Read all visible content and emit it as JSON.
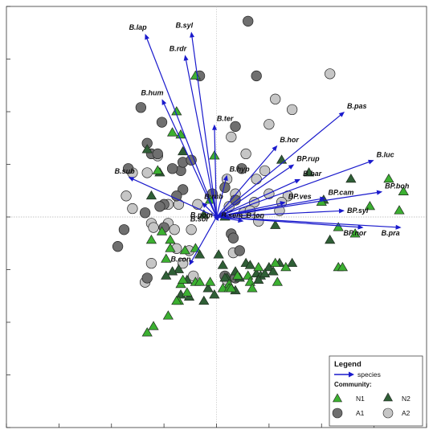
{
  "chart_data": {
    "type": "scatter",
    "subtype": "ordination biplot",
    "xlim": [
      -1.0,
      1.0
    ],
    "ylim": [
      -1.0,
      1.0
    ],
    "grid": false,
    "origin_lines": true,
    "legend_position": "bottom-right",
    "colors": {
      "N1": "#3cb031",
      "N2": "#2f5f36",
      "A1": "#6f6f6f",
      "A2": "#c6c6c6",
      "arrow": "#1a1acc"
    },
    "legend": {
      "title": "Legend",
      "arrow_label": "species",
      "community_title": "Community:",
      "items": [
        {
          "key": "N1",
          "label": "N1",
          "marker": "triangle"
        },
        {
          "key": "N2",
          "label": "N2",
          "marker": "triangle"
        },
        {
          "key": "A1",
          "label": "A1",
          "marker": "circle"
        },
        {
          "key": "A2",
          "label": "A2",
          "marker": "circle"
        }
      ]
    },
    "vectors": [
      {
        "label": "B.lap",
        "x": -0.34,
        "y": 0.87
      },
      {
        "label": "B.syl",
        "x": -0.12,
        "y": 0.88
      },
      {
        "label": "B.rdr",
        "x": -0.15,
        "y": 0.77
      },
      {
        "label": "B.hum",
        "x": -0.26,
        "y": 0.56
      },
      {
        "label": "B.ter",
        "x": -0.01,
        "y": 0.44
      },
      {
        "label": "B.hor",
        "x": 0.29,
        "y": 0.34
      },
      {
        "label": "B.pas",
        "x": 0.61,
        "y": 0.5
      },
      {
        "label": "BP.rup",
        "x": 0.37,
        "y": 0.25
      },
      {
        "label": "B.luc",
        "x": 0.75,
        "y": 0.27
      },
      {
        "label": "B.bar",
        "x": 0.4,
        "y": 0.18
      },
      {
        "label": "B.hyp",
        "x": 0.05,
        "y": 0.2
      },
      {
        "label": "B.sub",
        "x": -0.42,
        "y": 0.19
      },
      {
        "label": "B.rub",
        "x": -0.07,
        "y": 0.07
      },
      {
        "label": "BP.ves",
        "x": 0.33,
        "y": 0.07
      },
      {
        "label": "BP.cam",
        "x": 0.52,
        "y": 0.09
      },
      {
        "label": "BP.boh",
        "x": 0.79,
        "y": 0.12
      },
      {
        "label": "BP.syl",
        "x": 0.61,
        "y": 0.03
      },
      {
        "label": "B.pom",
        "x": -0.01,
        "y": 0.01
      },
      {
        "label": "B.sor",
        "x": -0.01,
        "y": -0.01
      },
      {
        "label": "B.sem",
        "x": 0.01,
        "y": -0.02
      },
      {
        "label": "B.jon",
        "x": 0.13,
        "y": -0.02
      },
      {
        "label": "BP.nor",
        "x": 0.7,
        "y": -0.05
      },
      {
        "label": "B.pra",
        "x": 0.88,
        "y": -0.05
      },
      {
        "label": "B.con",
        "x": -0.13,
        "y": -0.23
      }
    ],
    "series": [
      {
        "name": "N1",
        "points": [
          [
            -0.1,
            0.67
          ],
          [
            -0.19,
            0.5
          ],
          [
            -0.21,
            0.4
          ],
          [
            -0.17,
            0.39
          ],
          [
            -0.01,
            0.29
          ],
          [
            -0.28,
            0.22
          ],
          [
            -0.03,
            0.08
          ],
          [
            -0.31,
            -0.11
          ],
          [
            -0.22,
            -0.15
          ],
          [
            -0.24,
            -0.2
          ],
          [
            -0.15,
            -0.16
          ],
          [
            -0.1,
            -0.15
          ],
          [
            -0.17,
            -0.32
          ],
          [
            -0.1,
            -0.31
          ],
          [
            -0.08,
            -0.31
          ],
          [
            -0.03,
            -0.31
          ],
          [
            0.06,
            -0.32
          ],
          [
            0.1,
            -0.28
          ],
          [
            0.03,
            -0.34
          ],
          [
            0.06,
            -0.34
          ],
          [
            0.15,
            -0.28
          ],
          [
            0.2,
            -0.24
          ],
          [
            0.28,
            -0.22
          ],
          [
            0.29,
            -0.31
          ],
          [
            0.33,
            -0.24
          ],
          [
            0.16,
            -0.31
          ],
          [
            0.17,
            -0.34
          ],
          [
            -0.14,
            -0.36
          ],
          [
            -0.18,
            -0.4
          ],
          [
            -0.23,
            -0.47
          ],
          [
            -0.19,
            -0.4
          ],
          [
            -0.3,
            -0.52
          ],
          [
            -0.33,
            -0.55
          ],
          [
            -0.16,
            -0.3
          ],
          [
            0.07,
            -0.34
          ],
          [
            0.66,
            -0.08
          ],
          [
            0.58,
            -0.24
          ],
          [
            0.6,
            -0.24
          ],
          [
            0.82,
            0.18
          ],
          [
            0.89,
            0.12
          ],
          [
            0.87,
            0.03
          ],
          [
            0.73,
            0.05
          ],
          [
            0.5,
            0.07
          ],
          [
            0.58,
            -0.05
          ],
          [
            -0.26,
            -0.07
          ],
          [
            -0.22,
            -0.11
          ]
        ]
      },
      {
        "name": "N2",
        "points": [
          [
            -0.16,
            0.31
          ],
          [
            -0.31,
            0.1
          ],
          [
            -0.27,
            0.21
          ],
          [
            -0.33,
            0.32
          ],
          [
            -0.06,
            0.01
          ],
          [
            0.04,
            0.0
          ],
          [
            0.31,
            0.27
          ],
          [
            0.44,
            0.21
          ],
          [
            0.51,
            0.08
          ],
          [
            0.64,
            0.18
          ],
          [
            0.54,
            -0.11
          ],
          [
            0.25,
            -0.24
          ],
          [
            0.19,
            -0.27
          ],
          [
            0.21,
            -0.28
          ],
          [
            0.14,
            -0.22
          ],
          [
            0.11,
            -0.29
          ],
          [
            0.2,
            -0.3
          ],
          [
            0.27,
            -0.26
          ],
          [
            0.3,
            -0.22
          ],
          [
            0.36,
            -0.22
          ],
          [
            0.09,
            -0.35
          ],
          [
            0.05,
            -0.29
          ],
          [
            0.03,
            -0.23
          ],
          [
            0.01,
            -0.18
          ],
          [
            -0.08,
            -0.18
          ],
          [
            -0.18,
            -0.25
          ],
          [
            -0.14,
            -0.3
          ],
          [
            -0.13,
            -0.38
          ],
          [
            -0.06,
            -0.4
          ],
          [
            -0.01,
            -0.37
          ],
          [
            -0.04,
            -0.34
          ],
          [
            0.04,
            -0.29
          ],
          [
            0.09,
            -0.26
          ],
          [
            0.16,
            -0.23
          ],
          [
            0.23,
            -0.27
          ],
          [
            -0.21,
            -0.26
          ],
          [
            -0.24,
            -0.28
          ],
          [
            -0.17,
            -0.37
          ],
          [
            0.28,
            -0.04
          ]
        ]
      },
      {
        "name": "A1",
        "points": [
          [
            0.15,
            0.93
          ],
          [
            0.19,
            0.67
          ],
          [
            -0.08,
            0.67
          ],
          [
            0.09,
            0.43
          ],
          [
            -0.36,
            0.52
          ],
          [
            -0.26,
            0.45
          ],
          [
            -0.33,
            0.35
          ],
          [
            -0.31,
            0.3
          ],
          [
            -0.42,
            0.23
          ],
          [
            -0.28,
            0.3
          ],
          [
            -0.17,
            0.22
          ],
          [
            -0.16,
            0.26
          ],
          [
            -0.12,
            0.27
          ],
          [
            -0.21,
            0.23
          ],
          [
            -0.16,
            0.13
          ],
          [
            -0.19,
            0.1
          ],
          [
            -0.25,
            0.06
          ],
          [
            -0.34,
            0.02
          ],
          [
            -0.27,
            0.05
          ],
          [
            -0.44,
            -0.06
          ],
          [
            -0.47,
            -0.14
          ],
          [
            -0.25,
            -0.05
          ],
          [
            -0.33,
            -0.29
          ],
          [
            0.04,
            0.14
          ],
          [
            0.09,
            0.08
          ],
          [
            0.12,
            0.23
          ],
          [
            0.07,
            -0.08
          ],
          [
            0.08,
            -0.1
          ],
          [
            0.11,
            -0.16
          ],
          [
            0.09,
            -0.29
          ],
          [
            0.04,
            -0.28
          ],
          [
            -0.02,
            0.11
          ]
        ]
      },
      {
        "name": "A2",
        "points": [
          [
            0.28,
            0.56
          ],
          [
            0.36,
            0.51
          ],
          [
            0.54,
            0.68
          ],
          [
            0.25,
            0.44
          ],
          [
            0.07,
            0.38
          ],
          [
            0.14,
            0.3
          ],
          [
            0.19,
            0.18
          ],
          [
            0.23,
            0.22
          ],
          [
            0.34,
            0.1
          ],
          [
            0.31,
            0.07
          ],
          [
            0.25,
            0.11
          ],
          [
            0.09,
            0.11
          ],
          [
            0.13,
            0.02
          ],
          [
            0.2,
            -0.02
          ],
          [
            0.18,
            0.07
          ],
          [
            0.06,
            0.05
          ],
          [
            -0.4,
            0.21
          ],
          [
            -0.33,
            0.21
          ],
          [
            -0.43,
            0.1
          ],
          [
            -0.4,
            0.04
          ],
          [
            -0.18,
            0.06
          ],
          [
            -0.23,
            0.06
          ],
          [
            -0.31,
            -0.03
          ],
          [
            -0.23,
            -0.03
          ],
          [
            -0.2,
            -0.06
          ],
          [
            -0.19,
            -0.15
          ],
          [
            -0.13,
            -0.16
          ],
          [
            -0.16,
            -0.22
          ],
          [
            -0.31,
            -0.22
          ],
          [
            -0.34,
            -0.31
          ],
          [
            -0.11,
            -0.28
          ],
          [
            0.05,
            -0.3
          ],
          [
            -0.09,
            0.06
          ],
          [
            -0.28,
            0.29
          ],
          [
            0.3,
            0.03
          ],
          [
            0.05,
            0.18
          ],
          [
            0.08,
            -0.17
          ],
          [
            -0.12,
            -0.06
          ],
          [
            -0.3,
            -0.05
          ],
          [
            0.16,
            0.03
          ]
        ]
      }
    ]
  }
}
